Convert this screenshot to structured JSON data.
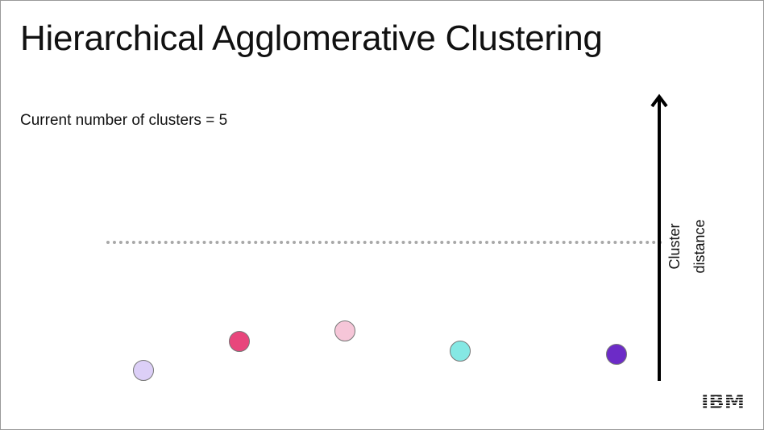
{
  "slide": {
    "title": "Hierarchical Agglomerative Clustering",
    "status_text": "Current number of clusters = 5"
  },
  "axis": {
    "label_line1": "Cluster",
    "label_line2": "distance",
    "color": "#000000"
  },
  "threshold": {
    "style": "dotted",
    "color": "#a8a8a8"
  },
  "points": [
    {
      "name": "point-1",
      "color": "#dccff7"
    },
    {
      "name": "point-2",
      "color": "#e8467c"
    },
    {
      "name": "point-3",
      "color": "#f6c6d8"
    },
    {
      "name": "point-4",
      "color": "#85e8e4"
    },
    {
      "name": "point-5",
      "color": "#6c2bc7"
    }
  ],
  "logo": {
    "text": "IBM",
    "icon": "ibm-logo"
  }
}
